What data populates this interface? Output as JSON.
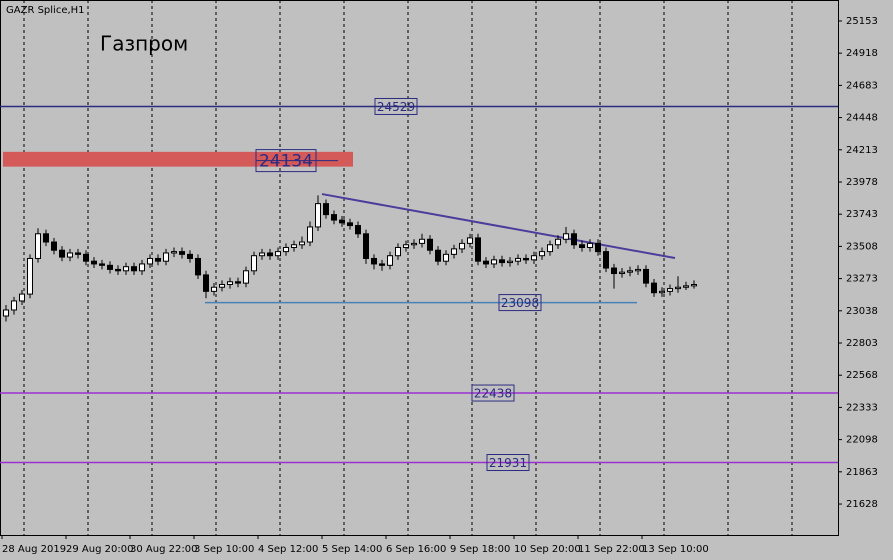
{
  "chart_data": {
    "type": "candlestick",
    "title": "GAZR Splice,H1",
    "subtitle": "Газпром",
    "x_labels": [
      "28 Aug 2019",
      "29 Aug 20:00",
      "30 Aug 22:00",
      "3 Sep 10:00",
      "4 Sep 12:00",
      "5 Sep 14:00",
      "6 Sep 16:00",
      "9 Sep 18:00",
      "10 Sep 20:00",
      "11 Sep 22:00",
      "13 Sep 10:00"
    ],
    "open": [
      23000,
      23044,
      23110,
      23160,
      23420,
      23600,
      23540,
      23480,
      23430,
      23460,
      23450,
      23400,
      23380,
      23370,
      23340,
      23330,
      23360,
      23330,
      23380,
      23420,
      23400,
      23460,
      23470,
      23450,
      23420,
      23300,
      23180,
      23210,
      23230,
      23250,
      23240,
      23330,
      23440,
      23460,
      23440,
      23470,
      23500,
      23520,
      23540,
      23650,
      23820,
      23740,
      23700,
      23680,
      23660,
      23600,
      23420,
      23380,
      23370,
      23440,
      23500,
      23520,
      23530,
      23560,
      23480,
      23400,
      23450,
      23490,
      23530,
      23570,
      23400,
      23380,
      23410,
      23390,
      23400,
      23420,
      23410,
      23440,
      23470,
      23520,
      23560,
      23600,
      23520,
      23500,
      23530,
      23470,
      23350,
      23310,
      23320,
      23330,
      23340,
      23240,
      23170,
      23180,
      23200,
      23210,
      23220
    ],
    "high": [
      23080,
      23140,
      23190,
      23450,
      23640,
      23630,
      23570,
      23510,
      23490,
      23490,
      23480,
      23430,
      23410,
      23400,
      23370,
      23390,
      23390,
      23410,
      23450,
      23450,
      23490,
      23500,
      23500,
      23480,
      23450,
      23330,
      23240,
      23260,
      23280,
      23280,
      23360,
      23470,
      23490,
      23490,
      23500,
      23530,
      23550,
      23580,
      23690,
      23880,
      23850,
      23770,
      23730,
      23710,
      23690,
      23630,
      23450,
      23410,
      23470,
      23530,
      23550,
      23560,
      23600,
      23590,
      23510,
      23480,
      23520,
      23560,
      23600,
      23600,
      23430,
      23440,
      23440,
      23430,
      23450,
      23450,
      23470,
      23500,
      23550,
      23590,
      23650,
      23630,
      23550,
      23560,
      23560,
      23500,
      23380,
      23350,
      23360,
      23370,
      23370,
      23270,
      23210,
      23230,
      23290,
      23250,
      23260
    ],
    "low": [
      22960,
      23010,
      23080,
      23130,
      23390,
      23510,
      23450,
      23400,
      23400,
      23420,
      23370,
      23350,
      23340,
      23310,
      23300,
      23300,
      23300,
      23300,
      23350,
      23370,
      23370,
      23430,
      23420,
      23390,
      23270,
      23130,
      23150,
      23180,
      23200,
      23210,
      23210,
      23300,
      23410,
      23410,
      23410,
      23440,
      23470,
      23490,
      23510,
      23620,
      23710,
      23670,
      23650,
      23630,
      23570,
      23380,
      23340,
      23330,
      23340,
      23410,
      23470,
      23490,
      23500,
      23450,
      23370,
      23370,
      23420,
      23460,
      23500,
      23370,
      23350,
      23350,
      23360,
      23360,
      23370,
      23380,
      23380,
      23410,
      23440,
      23490,
      23530,
      23490,
      23470,
      23470,
      23440,
      23320,
      23200,
      23280,
      23290,
      23300,
      23210,
      23140,
      23140,
      23150,
      23170,
      23190,
      23200
    ],
    "close": [
      23044,
      23110,
      23160,
      23420,
      23600,
      23540,
      23480,
      23430,
      23460,
      23450,
      23400,
      23380,
      23370,
      23340,
      23330,
      23360,
      23330,
      23380,
      23420,
      23400,
      23460,
      23470,
      23450,
      23420,
      23300,
      23180,
      23210,
      23230,
      23250,
      23240,
      23330,
      23440,
      23460,
      23440,
      23470,
      23500,
      23520,
      23540,
      23650,
      23820,
      23740,
      23700,
      23680,
      23660,
      23600,
      23420,
      23380,
      23370,
      23440,
      23500,
      23520,
      23530,
      23560,
      23480,
      23400,
      23450,
      23490,
      23530,
      23570,
      23400,
      23380,
      23410,
      23390,
      23400,
      23420,
      23410,
      23440,
      23470,
      23520,
      23560,
      23600,
      23520,
      23500,
      23530,
      23470,
      23350,
      23310,
      23320,
      23330,
      23340,
      23240,
      23170,
      23180,
      23200,
      23210,
      23220,
      23230
    ],
    "ylim": [
      21402,
      25306
    ],
    "yticks": [
      25153,
      24918,
      24683,
      24448,
      24213,
      23978,
      23743,
      23508,
      23273,
      23038,
      22803,
      22568,
      22333,
      22098,
      21863,
      21628
    ],
    "levels": [
      {
        "value": 24529,
        "color": "#2b2b80"
      },
      {
        "value": 23098,
        "color": "#4a80b8"
      },
      {
        "value": 22438,
        "color": "#9b30d0"
      },
      {
        "value": 21931,
        "color": "#9b30d0"
      }
    ],
    "zone": {
      "value": 24134,
      "top": 24198,
      "bottom": 24090,
      "color": "#d45a5a"
    },
    "trendline": {
      "values": [
        23890,
        23423
      ],
      "color": "#4b3d9c"
    }
  }
}
